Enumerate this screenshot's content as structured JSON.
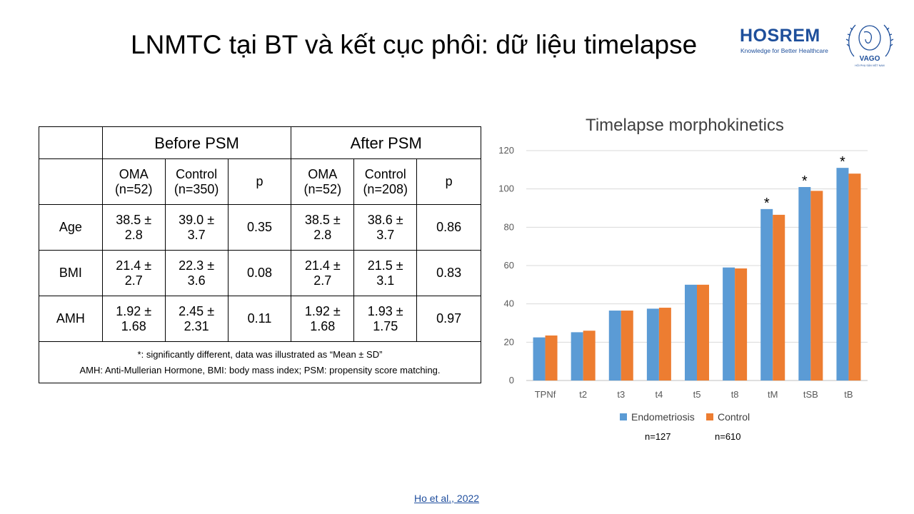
{
  "slide": {
    "title": "LNMTC tại BT và kết cục phôi: dữ liệu timelapse",
    "citation": "Ho et al., 2022"
  },
  "logos": {
    "hosrem": {
      "name": "HOSREM",
      "tagline": "Knowledge for Better Healthcare",
      "color": "#1e4f9b"
    },
    "vago": {
      "name": "VAGO",
      "subtitle": "HỘI PHỤ SẢN VIỆT NAM",
      "color": "#1e4f9b"
    }
  },
  "table": {
    "group_headers": [
      "Before PSM",
      "After PSM"
    ],
    "sub_headers": [
      "OMA (n=52)",
      "Control (n=350)",
      "p",
      "OMA (n=52)",
      "Control (n=208)",
      "p"
    ],
    "rows": [
      {
        "label": "Age",
        "cells": [
          "38.5 ± 2.8",
          "39.0 ± 3.7",
          "0.35",
          "38.5 ± 2.8",
          "38.6 ± 3.7",
          "0.86"
        ]
      },
      {
        "label": "BMI",
        "cells": [
          "21.4 ± 2.7",
          "22.3 ± 3.6",
          "0.08",
          "21.4 ± 2.7",
          "21.5 ± 3.1",
          "0.83"
        ]
      },
      {
        "label": "AMH",
        "cells": [
          "1.92 ± 1.68",
          "2.45 ± 2.31",
          "0.11",
          "1.92 ± 1.68",
          "1.93 ± 1.75",
          "0.97"
        ]
      }
    ],
    "notes": [
      "*: significantly different, data was illustrated as “Mean ± SD”",
      "AMH: Anti-Mullerian Hormone,   BMI: body mass index; PSM: propensity score matching."
    ]
  },
  "chart_data": {
    "type": "bar",
    "title": "Timelapse morphokinetics",
    "xlabel": "",
    "ylabel": "",
    "ylim": [
      0,
      120
    ],
    "yticks": [
      0,
      20,
      40,
      60,
      80,
      100,
      120
    ],
    "grid": true,
    "legend_position": "bottom",
    "categories": [
      "TPNf",
      "t2",
      "t3",
      "t4",
      "t5",
      "t8",
      "tM",
      "tSB",
      "tB"
    ],
    "series": [
      {
        "name": "Endometriosis",
        "color": "#5b9bd5",
        "values": [
          22.5,
          25.2,
          36.5,
          37.5,
          50,
          59,
          89.5,
          101,
          111
        ]
      },
      {
        "name": "Control",
        "color": "#ed7d31",
        "values": [
          23.5,
          26,
          36.5,
          38,
          50,
          58.5,
          86.5,
          99,
          108
        ]
      }
    ],
    "significant_marker": "*",
    "significant_categories": [
      "tM",
      "tSB",
      "tB"
    ],
    "sample_sizes": [
      "n=127",
      "n=610"
    ]
  }
}
